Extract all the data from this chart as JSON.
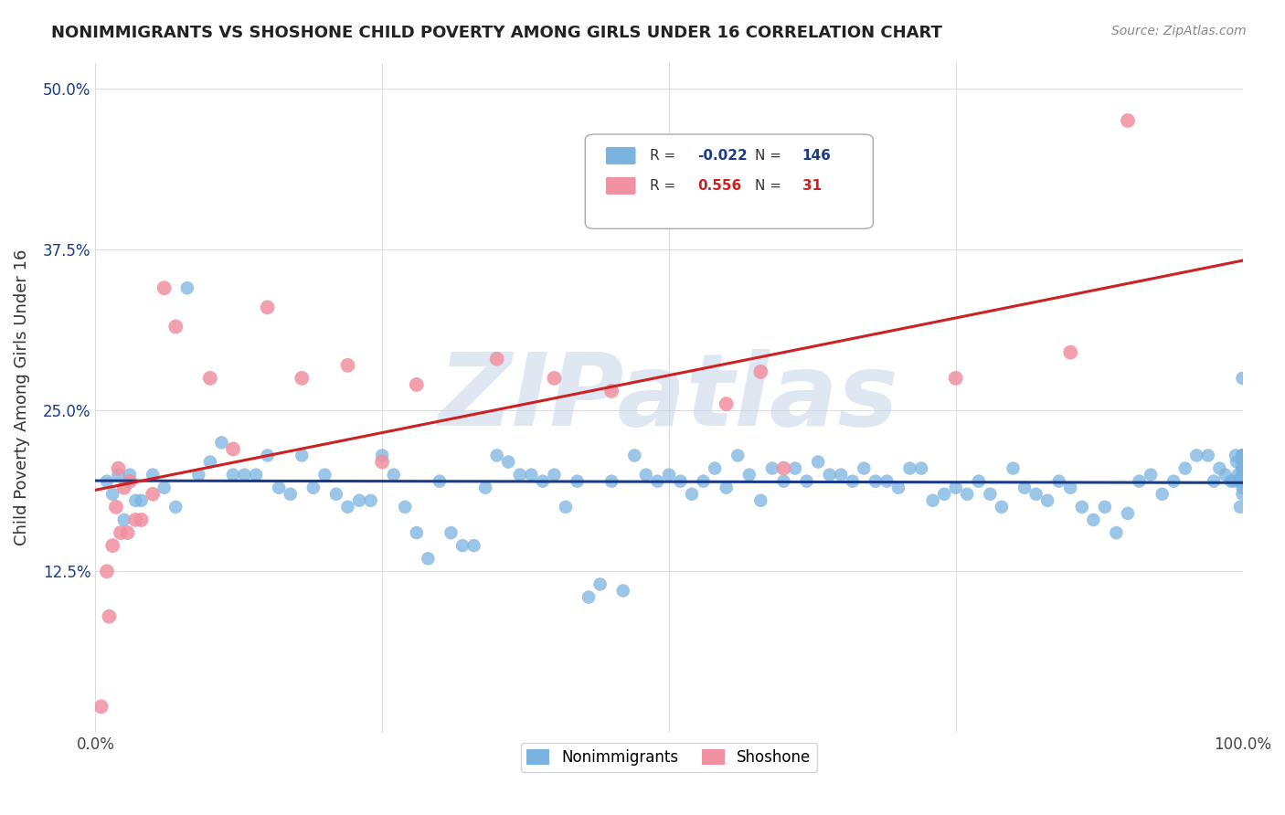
{
  "title": "NONIMMIGRANTS VS SHOSHONE CHILD POVERTY AMONG GIRLS UNDER 16 CORRELATION CHART",
  "source": "Source: ZipAtlas.com",
  "ylabel": "Child Poverty Among Girls Under 16",
  "xlim": [
    0,
    1.0
  ],
  "ylim": [
    0,
    0.52
  ],
  "x_ticks": [
    0.0,
    0.25,
    0.5,
    0.75,
    1.0
  ],
  "x_tick_labels": [
    "0.0%",
    "",
    "",
    "",
    "100.0%"
  ],
  "y_ticks": [
    0.0,
    0.125,
    0.25,
    0.375,
    0.5
  ],
  "y_tick_labels": [
    "",
    "12.5%",
    "25.0%",
    "37.5%",
    "50.0%"
  ],
  "nonimmigrants_R": -0.022,
  "nonimmigrants_N": 146,
  "shoshone_R": 0.556,
  "shoshone_N": 31,
  "nonimmigrants_color": "#7ab3e0",
  "shoshone_color": "#f090a0",
  "trendline_nonimmigrants_color": "#1a3a8a",
  "trendline_shoshone_color": "#cc2222",
  "watermark": "ZIPatlas",
  "watermark_color": "#c8d8ea",
  "background_color": "#ffffff",
  "grid_color": "#dddddd",
  "nonimmigrants_x": [
    0.01,
    0.015,
    0.02,
    0.025,
    0.03,
    0.035,
    0.04,
    0.05,
    0.06,
    0.07,
    0.08,
    0.09,
    0.1,
    0.11,
    0.12,
    0.13,
    0.14,
    0.15,
    0.16,
    0.17,
    0.18,
    0.19,
    0.2,
    0.21,
    0.22,
    0.23,
    0.24,
    0.25,
    0.26,
    0.27,
    0.28,
    0.29,
    0.3,
    0.31,
    0.32,
    0.33,
    0.34,
    0.35,
    0.36,
    0.37,
    0.38,
    0.39,
    0.4,
    0.41,
    0.42,
    0.43,
    0.44,
    0.45,
    0.46,
    0.47,
    0.48,
    0.49,
    0.5,
    0.51,
    0.52,
    0.53,
    0.54,
    0.55,
    0.56,
    0.57,
    0.58,
    0.59,
    0.6,
    0.61,
    0.62,
    0.63,
    0.64,
    0.65,
    0.66,
    0.67,
    0.68,
    0.69,
    0.7,
    0.71,
    0.72,
    0.73,
    0.74,
    0.75,
    0.76,
    0.77,
    0.78,
    0.79,
    0.8,
    0.81,
    0.82,
    0.83,
    0.84,
    0.85,
    0.86,
    0.87,
    0.88,
    0.89,
    0.9,
    0.91,
    0.92,
    0.93,
    0.94,
    0.95,
    0.96,
    0.97,
    0.975,
    0.98,
    0.985,
    0.99,
    0.992,
    0.994,
    0.995,
    0.996,
    0.997,
    0.998,
    0.999,
    1.0,
    1.0,
    1.0,
    1.0,
    1.0,
    1.0,
    1.0,
    1.0,
    1.0,
    1.0,
    1.0,
    1.0,
    1.0,
    1.0,
    1.0,
    1.0,
    1.0,
    1.0,
    1.0,
    1.0,
    1.0,
    1.0,
    1.0,
    1.0,
    1.0,
    1.0,
    1.0,
    1.0,
    1.0,
    1.0,
    1.0,
    1.0,
    1.0,
    1.0,
    1.0
  ],
  "nonimmigrants_y": [
    0.195,
    0.185,
    0.2,
    0.165,
    0.2,
    0.18,
    0.18,
    0.2,
    0.19,
    0.175,
    0.345,
    0.2,
    0.21,
    0.225,
    0.2,
    0.2,
    0.2,
    0.215,
    0.19,
    0.185,
    0.215,
    0.19,
    0.2,
    0.185,
    0.175,
    0.18,
    0.18,
    0.215,
    0.2,
    0.175,
    0.155,
    0.135,
    0.195,
    0.155,
    0.145,
    0.145,
    0.19,
    0.215,
    0.21,
    0.2,
    0.2,
    0.195,
    0.2,
    0.175,
    0.195,
    0.105,
    0.115,
    0.195,
    0.11,
    0.215,
    0.2,
    0.195,
    0.2,
    0.195,
    0.185,
    0.195,
    0.205,
    0.19,
    0.215,
    0.2,
    0.18,
    0.205,
    0.195,
    0.205,
    0.195,
    0.21,
    0.2,
    0.2,
    0.195,
    0.205,
    0.195,
    0.195,
    0.19,
    0.205,
    0.205,
    0.18,
    0.185,
    0.19,
    0.185,
    0.195,
    0.185,
    0.175,
    0.205,
    0.19,
    0.185,
    0.18,
    0.195,
    0.19,
    0.175,
    0.165,
    0.175,
    0.155,
    0.17,
    0.195,
    0.2,
    0.185,
    0.195,
    0.205,
    0.215,
    0.215,
    0.195,
    0.205,
    0.2,
    0.195,
    0.195,
    0.215,
    0.21,
    0.2,
    0.195,
    0.175,
    0.195,
    0.215,
    0.195,
    0.21,
    0.205,
    0.195,
    0.195,
    0.215,
    0.215,
    0.19,
    0.195,
    0.275,
    0.21,
    0.205,
    0.195,
    0.195,
    0.205,
    0.21,
    0.215,
    0.195,
    0.185,
    0.2,
    0.195,
    0.195,
    0.205,
    0.205,
    0.215,
    0.2,
    0.2,
    0.21,
    0.2,
    0.195,
    0.205,
    0.21,
    0.2,
    0.195
  ],
  "shoshone_x": [
    0.005,
    0.01,
    0.012,
    0.015,
    0.018,
    0.02,
    0.022,
    0.025,
    0.028,
    0.03,
    0.035,
    0.04,
    0.05,
    0.06,
    0.07,
    0.1,
    0.12,
    0.15,
    0.18,
    0.22,
    0.25,
    0.28,
    0.35,
    0.4,
    0.45,
    0.55,
    0.58,
    0.6,
    0.75,
    0.85,
    0.9
  ],
  "shoshone_y": [
    0.02,
    0.125,
    0.09,
    0.145,
    0.175,
    0.205,
    0.155,
    0.19,
    0.155,
    0.195,
    0.165,
    0.165,
    0.185,
    0.345,
    0.315,
    0.275,
    0.22,
    0.33,
    0.275,
    0.285,
    0.21,
    0.27,
    0.29,
    0.275,
    0.265,
    0.255,
    0.28,
    0.205,
    0.275,
    0.295,
    0.475
  ]
}
